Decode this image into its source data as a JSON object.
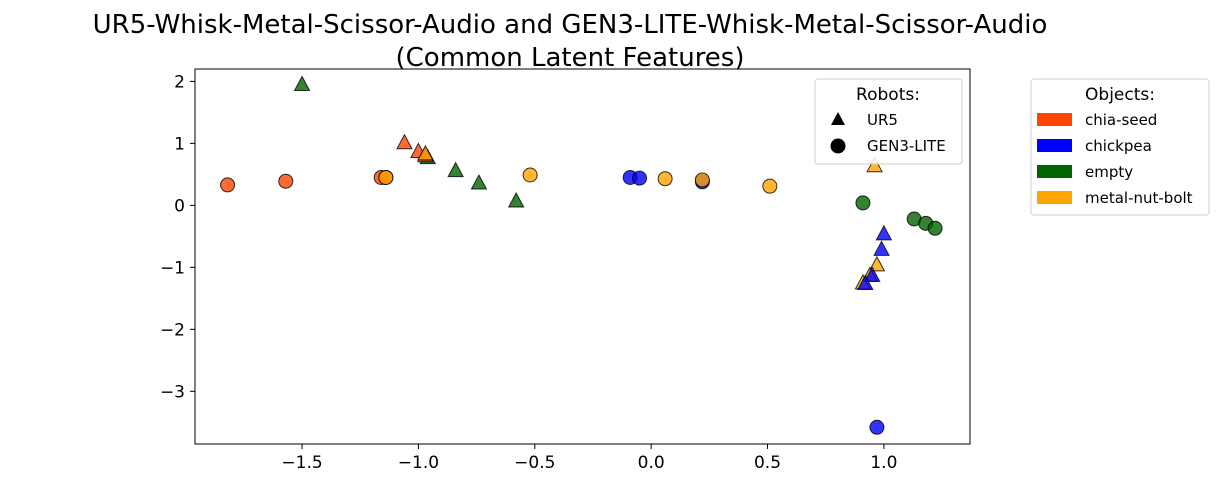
{
  "chart_data": {
    "type": "scatter",
    "title_line1": "UR5-Whisk-Metal-Scissor-Audio and GEN3-LITE-Whisk-Metal-Scissor-Audio",
    "title_line2": "(Common Latent Features)",
    "xlabel": "",
    "ylabel": "",
    "xlim": [
      -1.96,
      1.37
    ],
    "ylim": [
      -3.85,
      2.2
    ],
    "xticks": [
      -1.5,
      -1.0,
      -0.5,
      0.0,
      0.5,
      1.0
    ],
    "xtick_labels": [
      "−1.5",
      "−1.0",
      "−0.5",
      "0.0",
      "0.5",
      "1.0"
    ],
    "yticks": [
      2,
      1,
      0,
      -1,
      -2,
      -3
    ],
    "ytick_labels": [
      "2",
      "1",
      "0",
      "−1",
      "−2",
      "−3"
    ],
    "grid": false,
    "robots_legend": {
      "title": "Robots:",
      "location": "upper right",
      "entries": [
        {
          "label": "UR5",
          "marker": "triangle"
        },
        {
          "label": "GEN3-LITE",
          "marker": "circle"
        }
      ]
    },
    "objects_legend": {
      "title": "Objects:",
      "location": "outside right",
      "entries": [
        {
          "label": "chia-seed",
          "color": "#ff4500"
        },
        {
          "label": "chickpea",
          "color": "#0000ff"
        },
        {
          "label": "empty",
          "color": "#006400"
        },
        {
          "label": "metal-nut-bolt",
          "color": "#ffa500"
        }
      ]
    },
    "series": [
      {
        "robot": "UR5",
        "object": "empty",
        "marker": "triangle",
        "points": [
          [
            -1.5,
            1.95
          ],
          [
            -0.84,
            0.56
          ],
          [
            -0.74,
            0.36
          ],
          [
            -0.58,
            0.07
          ],
          [
            -0.96,
            0.77
          ]
        ]
      },
      {
        "robot": "UR5",
        "object": "chia-seed",
        "marker": "triangle",
        "points": [
          [
            -1.06,
            1.01
          ],
          [
            -1.0,
            0.87
          ],
          [
            -0.97,
            0.8
          ]
        ]
      },
      {
        "robot": "UR5",
        "object": "metal-nut-bolt",
        "marker": "triangle",
        "points": [
          [
            -0.97,
            0.83
          ],
          [
            0.96,
            0.64
          ],
          [
            0.97,
            -0.96
          ],
          [
            0.94,
            -1.13
          ],
          [
            0.91,
            -1.25
          ]
        ]
      },
      {
        "robot": "UR5",
        "object": "chickpea",
        "marker": "triangle",
        "points": [
          [
            1.0,
            -0.46
          ],
          [
            0.99,
            -0.71
          ],
          [
            0.95,
            -1.13
          ],
          [
            0.92,
            -1.26
          ]
        ]
      },
      {
        "robot": "GEN3-LITE",
        "object": "chia-seed",
        "marker": "circle",
        "points": [
          [
            -1.82,
            0.33
          ],
          [
            -1.57,
            0.39
          ],
          [
            -1.16,
            0.45
          ],
          [
            -1.14,
            0.45
          ]
        ]
      },
      {
        "robot": "GEN3-LITE",
        "object": "chickpea",
        "marker": "circle",
        "points": [
          [
            -0.09,
            0.45
          ],
          [
            -0.05,
            0.44
          ],
          [
            0.22,
            0.38
          ],
          [
            0.97,
            -3.58
          ]
        ]
      },
      {
        "robot": "GEN3-LITE",
        "object": "empty",
        "marker": "circle",
        "points": [
          [
            0.91,
            0.04
          ],
          [
            1.13,
            -0.22
          ],
          [
            1.18,
            -0.29
          ],
          [
            1.22,
            -0.37
          ]
        ]
      },
      {
        "robot": "GEN3-LITE",
        "object": "metal-nut-bolt",
        "marker": "circle",
        "points": [
          [
            -1.14,
            0.45
          ],
          [
            -0.52,
            0.49
          ],
          [
            0.06,
            0.43
          ],
          [
            0.22,
            0.41
          ],
          [
            0.51,
            0.31
          ]
        ]
      }
    ]
  }
}
